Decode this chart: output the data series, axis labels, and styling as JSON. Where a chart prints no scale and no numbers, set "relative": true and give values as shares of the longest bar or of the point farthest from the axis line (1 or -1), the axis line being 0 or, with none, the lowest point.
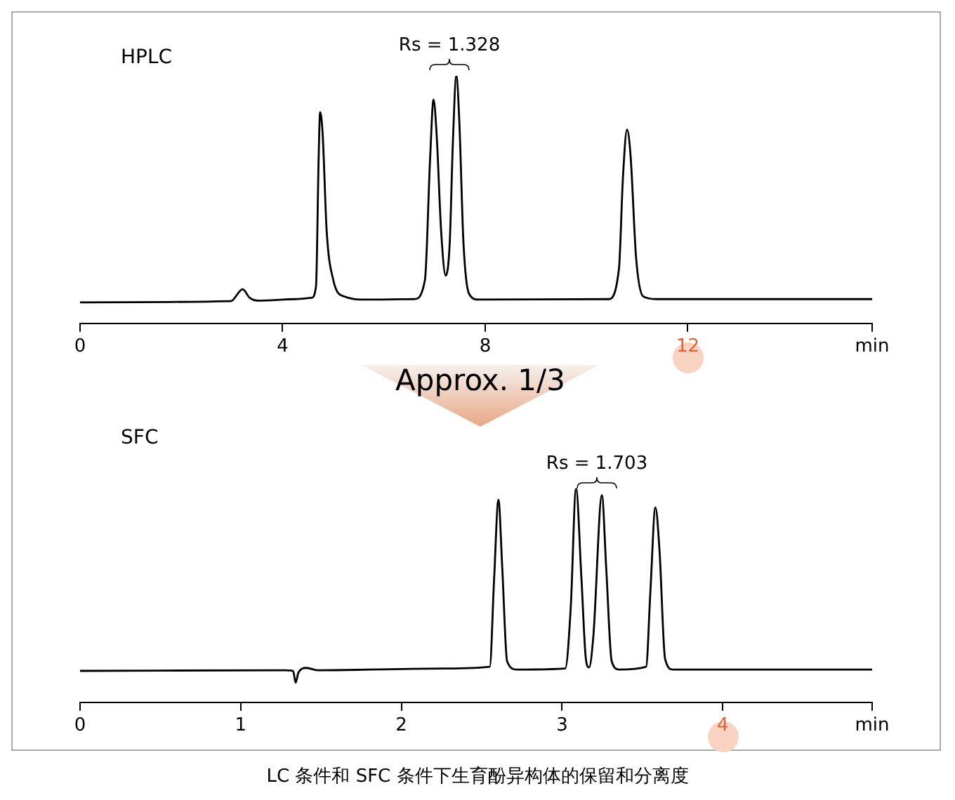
{
  "chart_data": [
    {
      "type": "line",
      "title": "HPLC",
      "relative": true,
      "xlabel": "min",
      "xlim": [
        0,
        15.64
      ],
      "xticks": [
        0,
        4,
        8,
        {
          "value": 12,
          "label": "12"
        },
        {
          "value": 15.64,
          "label": null
        }
      ],
      "marker": "none",
      "x": [
        0,
        2.98,
        3.21,
        3.35,
        3.51,
        4.26,
        4.57,
        4.66,
        4.71,
        4.74,
        4.79,
        4.87,
        5.0,
        5.21,
        5.64,
        6.6,
        6.81,
        6.91,
        6.98,
        7.04,
        7.13,
        7.22,
        7.3,
        7.36,
        7.43,
        7.49,
        7.57,
        7.68,
        7.87,
        10.43,
        10.64,
        10.72,
        10.8,
        10.87,
        10.98,
        11.12,
        11.38,
        15.64
      ],
      "series": [
        {
          "color": "#000000",
          "values": [
            0.085,
            0.09,
            0.138,
            0.103,
            0.092,
            0.098,
            0.103,
            0.153,
            0.656,
            0.853,
            0.766,
            0.372,
            0.175,
            0.109,
            0.096,
            0.098,
            0.175,
            0.656,
            0.904,
            0.766,
            0.372,
            0.193,
            0.328,
            0.722,
            1.0,
            0.81,
            0.328,
            0.12,
            0.096,
            0.098,
            0.219,
            0.591,
            0.783,
            0.678,
            0.263,
            0.109,
            0.098,
            0.098
          ]
        }
      ],
      "annotations": [
        "Rs = 1.328"
      ]
    },
    {
      "type": "line",
      "title": "SFC",
      "relative": true,
      "xlabel": "min",
      "xlim": [
        0,
        4.93
      ],
      "xticks": [
        0,
        1,
        2,
        3,
        {
          "value": 4,
          "label": "4"
        },
        {
          "value": 4.93,
          "label": null
        }
      ],
      "marker": "none",
      "x": [
        0,
        1.275,
        1.326,
        1.342,
        1.359,
        1.409,
        1.477,
        2.282,
        2.55,
        2.577,
        2.604,
        2.628,
        2.658,
        2.718,
        3.02,
        3.054,
        3.087,
        3.121,
        3.148,
        3.168,
        3.195,
        3.248,
        3.275,
        3.309,
        3.356,
        3.523,
        3.55,
        3.581,
        3.607,
        3.641,
        3.691,
        4.93
      ],
      "series": [
        {
          "color": "#000000",
          "values": [
            0.147,
            0.15,
            0.147,
            0.092,
            0.139,
            0.161,
            0.15,
            0.158,
            0.166,
            0.574,
            0.947,
            0.626,
            0.192,
            0.153,
            0.158,
            0.442,
            1.0,
            0.574,
            0.205,
            0.163,
            0.311,
            0.968,
            0.626,
            0.192,
            0.153,
            0.166,
            0.521,
            0.911,
            0.705,
            0.205,
            0.153,
            0.153
          ]
        }
      ],
      "annotations": [
        "Rs = 1.703",
        "Approx. 1/3",
        "LC 条件和 SFC 条件下生育酚异构体的保留和分离度"
      ]
    }
  ]
}
